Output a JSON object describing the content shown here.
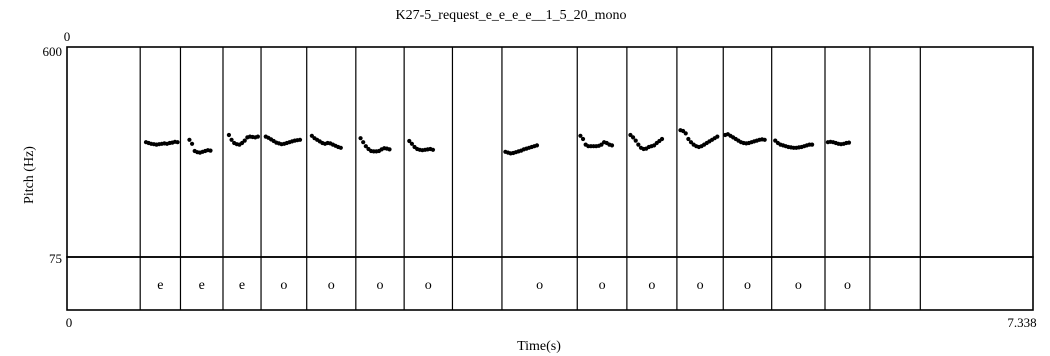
{
  "chart_data": {
    "type": "scatter",
    "title": "K27-5_request_e_e_e_e__1_5_20_mono",
    "xlabel": "Time(s)",
    "ylabel": "Pitch (Hz)",
    "xlim": [
      0,
      7.338
    ],
    "ylim": [
      75,
      600
    ],
    "x_tick_labels": {
      "start": "0",
      "end": "7.338"
    },
    "y_tick_labels": {
      "top": "600",
      "bottom": "75"
    },
    "top_corner_label": "0",
    "boundaries": [
      0.556,
      0.862,
      1.185,
      1.474,
      1.821,
      2.194,
      2.561,
      2.928,
      3.304,
      3.876,
      4.253,
      4.633,
      4.985,
      5.353,
      5.758,
      6.099,
      6.482
    ],
    "intervals": [
      {
        "start": 0.556,
        "end": 0.862,
        "label": "e"
      },
      {
        "start": 0.862,
        "end": 1.185,
        "label": "e"
      },
      {
        "start": 1.185,
        "end": 1.474,
        "label": "e"
      },
      {
        "start": 1.474,
        "end": 1.821,
        "label": "o"
      },
      {
        "start": 1.821,
        "end": 2.194,
        "label": "o"
      },
      {
        "start": 2.194,
        "end": 2.561,
        "label": "o"
      },
      {
        "start": 2.561,
        "end": 2.928,
        "label": "o"
      },
      {
        "start": 3.304,
        "end": 3.876,
        "label": "o"
      },
      {
        "start": 3.876,
        "end": 4.253,
        "label": "o"
      },
      {
        "start": 4.253,
        "end": 4.633,
        "label": "o"
      },
      {
        "start": 4.633,
        "end": 4.985,
        "label": "o"
      },
      {
        "start": 4.985,
        "end": 5.353,
        "label": "o"
      },
      {
        "start": 5.353,
        "end": 5.758,
        "label": "o"
      },
      {
        "start": 5.758,
        "end": 6.099,
        "label": "o"
      }
    ],
    "segments": [
      {
        "name": "seg1",
        "x": [
          0.6,
          0.62,
          0.64,
          0.66,
          0.68,
          0.7,
          0.72,
          0.74,
          0.76,
          0.78,
          0.8,
          0.82,
          0.84
        ],
        "y": [
          362,
          360,
          358,
          357,
          356,
          357,
          358,
          359,
          358,
          360,
          361,
          363,
          362
        ]
      },
      {
        "name": "seg2",
        "x": [
          0.93,
          0.95,
          0.97,
          0.99,
          1.01,
          1.03,
          1.05,
          1.07,
          1.09
        ],
        "y": [
          368,
          358,
          340,
          337,
          336,
          338,
          340,
          342,
          341
        ]
      },
      {
        "name": "seg3",
        "x": [
          1.23,
          1.25,
          1.27,
          1.29,
          1.31,
          1.33,
          1.35,
          1.37,
          1.39,
          1.41,
          1.43,
          1.45
        ],
        "y": [
          380,
          368,
          360,
          357,
          356,
          360,
          366,
          374,
          376,
          375,
          374,
          376
        ]
      },
      {
        "name": "seg4",
        "x": [
          1.51,
          1.53,
          1.55,
          1.57,
          1.59,
          1.61,
          1.63,
          1.65,
          1.67,
          1.69,
          1.71,
          1.73,
          1.75,
          1.77
        ],
        "y": [
          376,
          373,
          369,
          365,
          361,
          359,
          357,
          358,
          360,
          362,
          364,
          366,
          367,
          368
        ]
      },
      {
        "name": "seg5",
        "x": [
          1.86,
          1.88,
          1.9,
          1.92,
          1.94,
          1.96,
          1.98,
          2.0,
          2.02,
          2.04,
          2.06,
          2.08
        ],
        "y": [
          378,
          372,
          368,
          364,
          360,
          358,
          360,
          359,
          356,
          353,
          350,
          348
        ]
      },
      {
        "name": "seg6",
        "x": [
          2.23,
          2.25,
          2.27,
          2.29,
          2.31,
          2.33,
          2.35,
          2.37,
          2.39,
          2.41,
          2.43,
          2.45
        ],
        "y": [
          372,
          362,
          352,
          345,
          340,
          339,
          339,
          340,
          344,
          347,
          346,
          344
        ]
      },
      {
        "name": "seg7",
        "x": [
          2.6,
          2.62,
          2.64,
          2.66,
          2.68,
          2.7,
          2.72,
          2.74,
          2.76,
          2.78
        ],
        "y": [
          365,
          358,
          350,
          345,
          343,
          342,
          343,
          344,
          345,
          343
        ]
      },
      {
        "name": "seg8",
        "x": [
          3.33,
          3.35,
          3.37,
          3.39,
          3.41,
          3.43,
          3.45,
          3.47,
          3.49,
          3.51,
          3.53,
          3.55,
          3.57
        ],
        "y": [
          338,
          336,
          334,
          335,
          337,
          339,
          341,
          344,
          346,
          348,
          350,
          352,
          354
        ]
      },
      {
        "name": "seg9",
        "x": [
          3.9,
          3.92,
          3.94,
          3.96,
          3.98,
          4.0,
          4.02,
          4.04,
          4.06,
          4.08,
          4.1,
          4.12,
          4.14
        ],
        "y": [
          378,
          370,
          356,
          352,
          352,
          352,
          352,
          353,
          356,
          362,
          360,
          356,
          354
        ]
      },
      {
        "name": "seg10",
        "x": [
          4.28,
          4.3,
          4.32,
          4.34,
          4.36,
          4.38,
          4.4,
          4.42,
          4.44,
          4.46,
          4.48,
          4.5,
          4.52
        ],
        "y": [
          380,
          374,
          366,
          356,
          348,
          345,
          346,
          350,
          352,
          354,
          360,
          365,
          370
        ]
      },
      {
        "name": "seg11",
        "x": [
          4.66,
          4.68,
          4.7,
          4.72,
          4.74,
          4.76,
          4.78,
          4.8,
          4.82,
          4.84,
          4.86,
          4.88,
          4.9,
          4.92,
          4.94
        ],
        "y": [
          392,
          390,
          384,
          370,
          362,
          356,
          352,
          350,
          352,
          356,
          360,
          364,
          368,
          372,
          376
        ]
      },
      {
        "name": "seg12",
        "x": [
          5.0,
          5.02,
          5.04,
          5.06,
          5.08,
          5.1,
          5.12,
          5.14,
          5.16,
          5.18,
          5.2,
          5.22,
          5.24,
          5.26,
          5.28,
          5.3
        ],
        "y": [
          380,
          382,
          378,
          374,
          370,
          366,
          362,
          360,
          359,
          360,
          362,
          364,
          366,
          368,
          369,
          368
        ]
      },
      {
        "name": "seg13",
        "x": [
          5.38,
          5.4,
          5.42,
          5.44,
          5.46,
          5.48,
          5.5,
          5.52,
          5.54,
          5.56,
          5.58,
          5.6,
          5.62,
          5.64,
          5.66
        ],
        "y": [
          366,
          360,
          356,
          354,
          352,
          350,
          349,
          348,
          348,
          349,
          350,
          352,
          354,
          356,
          356
        ]
      },
      {
        "name": "seg14",
        "x": [
          5.78,
          5.8,
          5.82,
          5.84,
          5.86,
          5.88,
          5.9,
          5.92,
          5.94
        ],
        "y": [
          362,
          363,
          362,
          360,
          358,
          357,
          358,
          360,
          361
        ]
      }
    ]
  }
}
